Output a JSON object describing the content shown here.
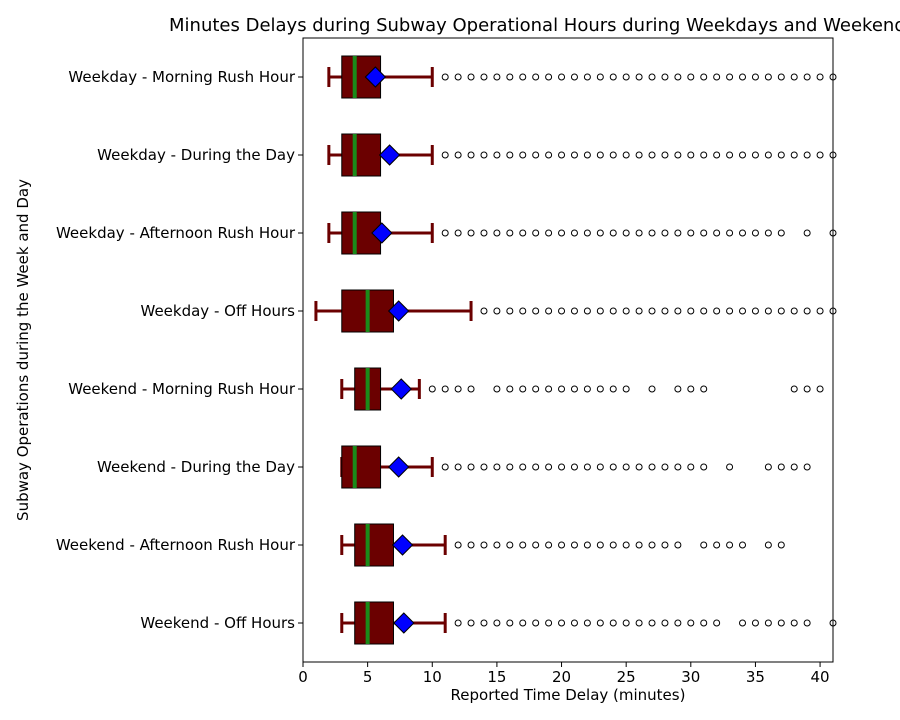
{
  "chart_data": {
    "type": "box",
    "title": "Minutes Delays during Subway Operational Hours during Weekdays and Weekends",
    "xlabel": "Reported Time Delay (minutes)",
    "ylabel": "Subway Operations during the Week and Day",
    "xlim": [
      0,
      41
    ],
    "xticks": [
      0,
      5,
      10,
      15,
      20,
      25,
      30,
      35,
      40
    ],
    "grid": false,
    "orientation": "horizontal",
    "colors": {
      "box": "#6b0000",
      "median": "#1a8a1a",
      "mean": "#0000ff",
      "whisker": "#6b0000"
    },
    "categories": [
      "Weekday - Morning Rush Hour",
      "Weekday - During the Day",
      "Weekday - Afternoon Rush Hour",
      "Weekday - Off Hours",
      "Weekend - Morning Rush Hour",
      "Weekend - During the Day",
      "Weekend - Afternoon Rush Hour",
      "Weekend - Off Hours"
    ],
    "boxes": [
      {
        "whislo": 2,
        "q1": 3,
        "med": 4,
        "q3": 6,
        "whishi": 10,
        "mean": 5.6,
        "fliers": [
          11,
          12,
          13,
          14,
          15,
          16,
          17,
          18,
          19,
          20,
          21,
          22,
          23,
          24,
          25,
          26,
          27,
          28,
          29,
          30,
          31,
          32,
          33,
          34,
          35,
          36,
          37,
          38,
          39,
          40,
          41
        ]
      },
      {
        "whislo": 2,
        "q1": 3,
        "med": 4,
        "q3": 6,
        "whishi": 10,
        "mean": 6.7,
        "fliers": [
          11,
          12,
          13,
          14,
          15,
          16,
          17,
          18,
          19,
          20,
          21,
          22,
          23,
          24,
          25,
          26,
          27,
          28,
          29,
          30,
          31,
          32,
          33,
          34,
          35,
          36,
          37,
          38,
          39,
          40,
          41
        ]
      },
      {
        "whislo": 2,
        "q1": 3,
        "med": 4,
        "q3": 6,
        "whishi": 10,
        "mean": 6.1,
        "fliers": [
          11,
          12,
          13,
          14,
          15,
          16,
          17,
          18,
          19,
          20,
          21,
          22,
          23,
          24,
          25,
          26,
          27,
          28,
          29,
          30,
          31,
          32,
          33,
          34,
          35,
          36,
          37,
          39,
          41
        ]
      },
      {
        "whislo": 1,
        "q1": 3,
        "med": 5,
        "q3": 7,
        "whishi": 13,
        "mean": 7.4,
        "fliers": [
          14,
          15,
          16,
          17,
          18,
          19,
          20,
          21,
          22,
          23,
          24,
          25,
          26,
          27,
          28,
          29,
          30,
          31,
          32,
          33,
          34,
          35,
          36,
          37,
          38,
          39,
          40,
          41
        ]
      },
      {
        "whislo": 3,
        "q1": 4,
        "med": 5,
        "q3": 6,
        "whishi": 9,
        "mean": 7.6,
        "fliers": [
          10,
          11,
          12,
          13,
          15,
          16,
          17,
          18,
          19,
          20,
          21,
          22,
          23,
          24,
          25,
          27,
          29,
          30,
          31,
          38,
          39,
          40
        ]
      },
      {
        "whislo": 3,
        "q1": 3,
        "med": 4,
        "q3": 6,
        "whishi": 10,
        "mean": 7.4,
        "fliers": [
          11,
          12,
          13,
          14,
          15,
          16,
          17,
          18,
          19,
          20,
          21,
          22,
          23,
          24,
          25,
          26,
          27,
          28,
          29,
          30,
          31,
          33,
          36,
          37,
          38,
          39
        ]
      },
      {
        "whislo": 3,
        "q1": 4,
        "med": 5,
        "q3": 7,
        "whishi": 11,
        "mean": 7.7,
        "fliers": [
          12,
          13,
          14,
          15,
          16,
          17,
          18,
          19,
          20,
          21,
          22,
          23,
          24,
          25,
          26,
          27,
          28,
          29,
          31,
          32,
          33,
          34,
          36,
          37
        ]
      },
      {
        "whislo": 3,
        "q1": 4,
        "med": 5,
        "q3": 7,
        "whishi": 11,
        "mean": 7.8,
        "fliers": [
          12,
          13,
          14,
          15,
          16,
          17,
          18,
          19,
          20,
          21,
          22,
          23,
          24,
          25,
          26,
          27,
          28,
          29,
          30,
          31,
          32,
          34,
          35,
          36,
          37,
          38,
          39,
          41
        ]
      }
    ]
  }
}
